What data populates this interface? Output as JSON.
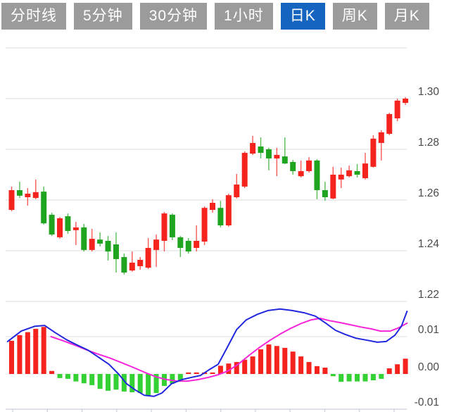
{
  "tabs": {
    "active_index": 4,
    "items": [
      {
        "label": "分时线",
        "active": false
      },
      {
        "label": "5分钟",
        "active": false
      },
      {
        "label": "30分钟",
        "active": false
      },
      {
        "label": "1小时",
        "active": false
      },
      {
        "label": "日K",
        "active": true
      },
      {
        "label": "周K",
        "active": false
      },
      {
        "label": "月K",
        "active": false
      }
    ]
  },
  "colors": {
    "up_red": "#f5231d",
    "down_green": "#1ea41e",
    "macd_bar_green": "#33d133",
    "macd_bar_red": "#f5231d",
    "dif_blue": "#2127dd",
    "dea_magenta": "#f624d8",
    "grid": "#e9e9e9",
    "zero_line": "#ededed",
    "axis": "#c9cfdf",
    "label": "#4a4a4a",
    "tab_bg": "#9b9b9b",
    "tab_active_bg": "#1565c0",
    "tab_text": "#ffffff",
    "background": "#ffffff"
  },
  "chart_data": {
    "type": "candlestick",
    "color_convention": "red-up-green-down",
    "panels": [
      {
        "name": "price",
        "ylim": [
          1.218,
          1.322
        ],
        "grid": true,
        "y_ticks": [
          {
            "value": 1.32,
            "label": ""
          },
          {
            "value": 1.3,
            "label": "1.30"
          },
          {
            "value": 1.28,
            "label": "1.28"
          },
          {
            "value": 1.26,
            "label": "1.26"
          },
          {
            "value": 1.24,
            "label": "1.24"
          },
          {
            "value": 1.22,
            "label": "1.22"
          }
        ],
        "candles_ohlc": [
          [
            1.2561,
            1.2653,
            1.2556,
            1.2639
          ],
          [
            1.2639,
            1.2672,
            1.2608,
            1.2617
          ],
          [
            1.2611,
            1.2647,
            1.2578,
            1.2625
          ],
          [
            1.2608,
            1.2681,
            1.2603,
            1.2631
          ],
          [
            1.2633,
            1.2653,
            1.2503,
            1.2508
          ],
          [
            1.2542,
            1.255,
            1.2458,
            1.2464
          ],
          [
            1.2453,
            1.2533,
            1.2447,
            1.2528
          ],
          [
            1.2536,
            1.2547,
            1.2467,
            1.2478
          ],
          [
            1.2481,
            1.2514,
            1.2422,
            1.2492
          ],
          [
            1.2492,
            1.2506,
            1.2397,
            1.2403
          ],
          [
            1.2403,
            1.2486,
            1.2397,
            1.2447
          ],
          [
            1.2444,
            1.2472,
            1.2417,
            1.2428
          ],
          [
            1.2439,
            1.2458,
            1.2361,
            1.2397
          ],
          [
            1.2425,
            1.2472,
            1.2314,
            1.2367
          ],
          [
            1.2375,
            1.2389,
            1.2306,
            1.2314
          ],
          [
            1.2322,
            1.2397,
            1.2317,
            1.2353
          ],
          [
            1.2339,
            1.2375,
            1.2325,
            1.2364
          ],
          [
            1.2333,
            1.245,
            1.2328,
            1.2411
          ],
          [
            1.2403,
            1.2464,
            1.2336,
            1.2444
          ],
          [
            1.2439,
            1.2553,
            1.2397,
            1.2547
          ],
          [
            1.2542,
            1.2547,
            1.2442,
            1.2453
          ],
          [
            1.2453,
            1.2458,
            1.2375,
            1.2411
          ],
          [
            1.2439,
            1.245,
            1.2389,
            1.2397
          ],
          [
            1.2411,
            1.25,
            1.2397,
            1.2439
          ],
          [
            1.2436,
            1.2575,
            1.2422,
            1.2569
          ],
          [
            1.2561,
            1.2603,
            1.255,
            1.2589
          ],
          [
            1.2569,
            1.2597,
            1.2492,
            1.25
          ],
          [
            1.25,
            1.2625,
            1.2494,
            1.2619
          ],
          [
            1.2611,
            1.2703,
            1.2606,
            1.2661
          ],
          [
            1.2653,
            1.2792,
            1.2647,
            1.2786
          ],
          [
            1.2783,
            1.2853,
            1.2778,
            1.2825
          ],
          [
            1.2811,
            1.2847,
            1.2764,
            1.2786
          ],
          [
            1.28,
            1.2806,
            1.2717,
            1.2764
          ],
          [
            1.2764,
            1.2806,
            1.2694,
            1.2778
          ],
          [
            1.2772,
            1.2847,
            1.2742,
            1.2744
          ],
          [
            1.275,
            1.2758,
            1.27,
            1.2714
          ],
          [
            1.2694,
            1.2756,
            1.2689,
            1.2714
          ],
          [
            1.2714,
            1.2769,
            1.2708,
            1.2756
          ],
          [
            1.2756,
            1.2761,
            1.2603,
            1.2639
          ],
          [
            1.2639,
            1.2672,
            1.2597,
            1.2611
          ],
          [
            1.2606,
            1.2731,
            1.2603,
            1.27
          ],
          [
            1.2681,
            1.2728,
            1.2647,
            1.27
          ],
          [
            1.2694,
            1.2736,
            1.2689,
            1.2717
          ],
          [
            1.2714,
            1.2742,
            1.2689,
            1.27
          ],
          [
            1.2686,
            1.2786,
            1.2681,
            1.2744
          ],
          [
            1.2731,
            1.2856,
            1.2728,
            1.2842
          ],
          [
            1.2825,
            1.2875,
            1.2756,
            1.2867
          ],
          [
            1.2861,
            1.2944,
            1.2856,
            1.2939
          ],
          [
            1.2922,
            1.3,
            1.2911,
            1.2992
          ],
          [
            1.2983,
            1.3006,
            1.2975,
            1.3
          ]
        ]
      },
      {
        "name": "macd",
        "ylim": [
          -0.011,
          0.019
        ],
        "grid": true,
        "y_ticks": [
          {
            "value": 0.01,
            "label": "0.01"
          },
          {
            "value": 0.0,
            "label": "0.00"
          },
          {
            "value": -0.01,
            "label": "-0.01"
          }
        ],
        "histogram": [
          0.0089,
          0.0104,
          0.0112,
          0.0121,
          0.0126,
          0.0008,
          -0.0011,
          -0.0013,
          -0.002,
          -0.0025,
          -0.003,
          -0.004,
          -0.0045,
          -0.0042,
          -0.0047,
          -0.0049,
          -0.0051,
          -0.0057,
          -0.0051,
          -0.0032,
          -0.0026,
          -0.0019,
          0.0004,
          0.0004,
          0.0004,
          0.0004,
          0.0022,
          0.0028,
          0.0032,
          0.0038,
          0.0047,
          0.0066,
          0.0079,
          0.0075,
          0.007,
          0.006,
          0.0047,
          0.0032,
          0.0021,
          0.0017,
          -0.0006,
          -0.0021,
          -0.002,
          -0.002,
          -0.002,
          -0.0017,
          -0.0013,
          0.0015,
          0.0026,
          0.0041
        ],
        "dif_line": [
          [
            -0.5,
            0.0087
          ],
          [
            1.2,
            0.0115
          ],
          [
            2.9,
            0.0128
          ],
          [
            4.1,
            0.013
          ],
          [
            5.4,
            0.0111
          ],
          [
            6.9,
            0.0091
          ],
          [
            8.2,
            0.0077
          ],
          [
            9.5,
            0.0064
          ],
          [
            10.8,
            0.0045
          ],
          [
            12.1,
            0.0026
          ],
          [
            13.3,
            0.0
          ],
          [
            14.3,
            -0.0026
          ],
          [
            15.4,
            -0.0043
          ],
          [
            16.5,
            -0.0057
          ],
          [
            17.7,
            -0.006
          ],
          [
            18.7,
            -0.0051
          ],
          [
            19.9,
            -0.0026
          ],
          [
            21.2,
            -0.0015
          ],
          [
            22.4,
            -0.0009
          ],
          [
            23.5,
            -0.0004
          ],
          [
            24.7,
            0.0013
          ],
          [
            25.7,
            0.0026
          ],
          [
            26.8,
            0.007
          ],
          [
            28,
            0.0119
          ],
          [
            29.2,
            0.0145
          ],
          [
            30.6,
            0.016
          ],
          [
            31.9,
            0.017
          ],
          [
            33.4,
            0.0174
          ],
          [
            34.9,
            0.017
          ],
          [
            36.4,
            0.0164
          ],
          [
            37.8,
            0.0155
          ],
          [
            39.1,
            0.0136
          ],
          [
            40.3,
            0.0117
          ],
          [
            41.5,
            0.0106
          ],
          [
            42.8,
            0.0096
          ],
          [
            44.1,
            0.0091
          ],
          [
            45.5,
            0.0085
          ],
          [
            46.6,
            0.0087
          ],
          [
            47.7,
            0.0104
          ],
          [
            48.5,
            0.0128
          ],
          [
            49.2,
            0.0168
          ]
        ],
        "dea_line": [
          [
            4.9,
            0.01
          ],
          [
            6.4,
            0.0089
          ],
          [
            7.9,
            0.0077
          ],
          [
            9.4,
            0.0064
          ],
          [
            10.8,
            0.0053
          ],
          [
            12.3,
            0.0042
          ],
          [
            13.7,
            0.003
          ],
          [
            15.2,
            0.0017
          ],
          [
            16.6,
            0.0004
          ],
          [
            18.0,
            -0.0008
          ],
          [
            19.3,
            -0.0015
          ],
          [
            20.6,
            -0.0019
          ],
          [
            21.9,
            -0.0019
          ],
          [
            23.2,
            -0.0015
          ],
          [
            24.5,
            -0.0009
          ],
          [
            25.7,
            -0.0002
          ],
          [
            26.9,
            0.0008
          ],
          [
            28.2,
            0.0026
          ],
          [
            29.5,
            0.0049
          ],
          [
            30.9,
            0.0072
          ],
          [
            32.2,
            0.0091
          ],
          [
            33.5,
            0.0108
          ],
          [
            34.8,
            0.0123
          ],
          [
            36.1,
            0.0136
          ],
          [
            37.3,
            0.0145
          ],
          [
            38.4,
            0.0149
          ],
          [
            39.5,
            0.0143
          ],
          [
            40.8,
            0.0138
          ],
          [
            42.1,
            0.0132
          ],
          [
            43.4,
            0.0126
          ],
          [
            44.7,
            0.0121
          ],
          [
            45.9,
            0.0115
          ],
          [
            47.1,
            0.0115
          ],
          [
            48.1,
            0.0123
          ],
          [
            49.2,
            0.0136
          ]
        ]
      }
    ],
    "x_axis": {
      "tick_count": 12,
      "labels_visible": false
    }
  }
}
